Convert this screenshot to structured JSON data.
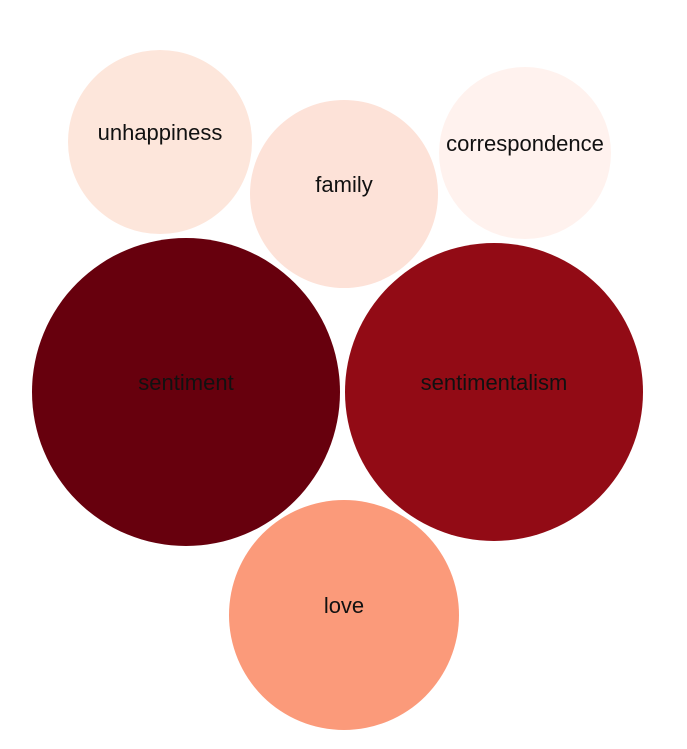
{
  "chart_data": {
    "type": "bubble",
    "title": "",
    "bubbles": [
      {
        "label": "unhappiness",
        "value": 1,
        "color": "#fde6db"
      },
      {
        "label": "family",
        "value": 1,
        "color": "#fde2d8"
      },
      {
        "label": "correspondence",
        "value": 1,
        "color": "#fff2ee"
      },
      {
        "label": "sentiment",
        "value": 3,
        "color": "#67000d"
      },
      {
        "label": "sentimentalism",
        "value": 3,
        "color": "#920b15"
      },
      {
        "label": "love",
        "value": 2,
        "color": "#fb9a7a"
      }
    ]
  }
}
